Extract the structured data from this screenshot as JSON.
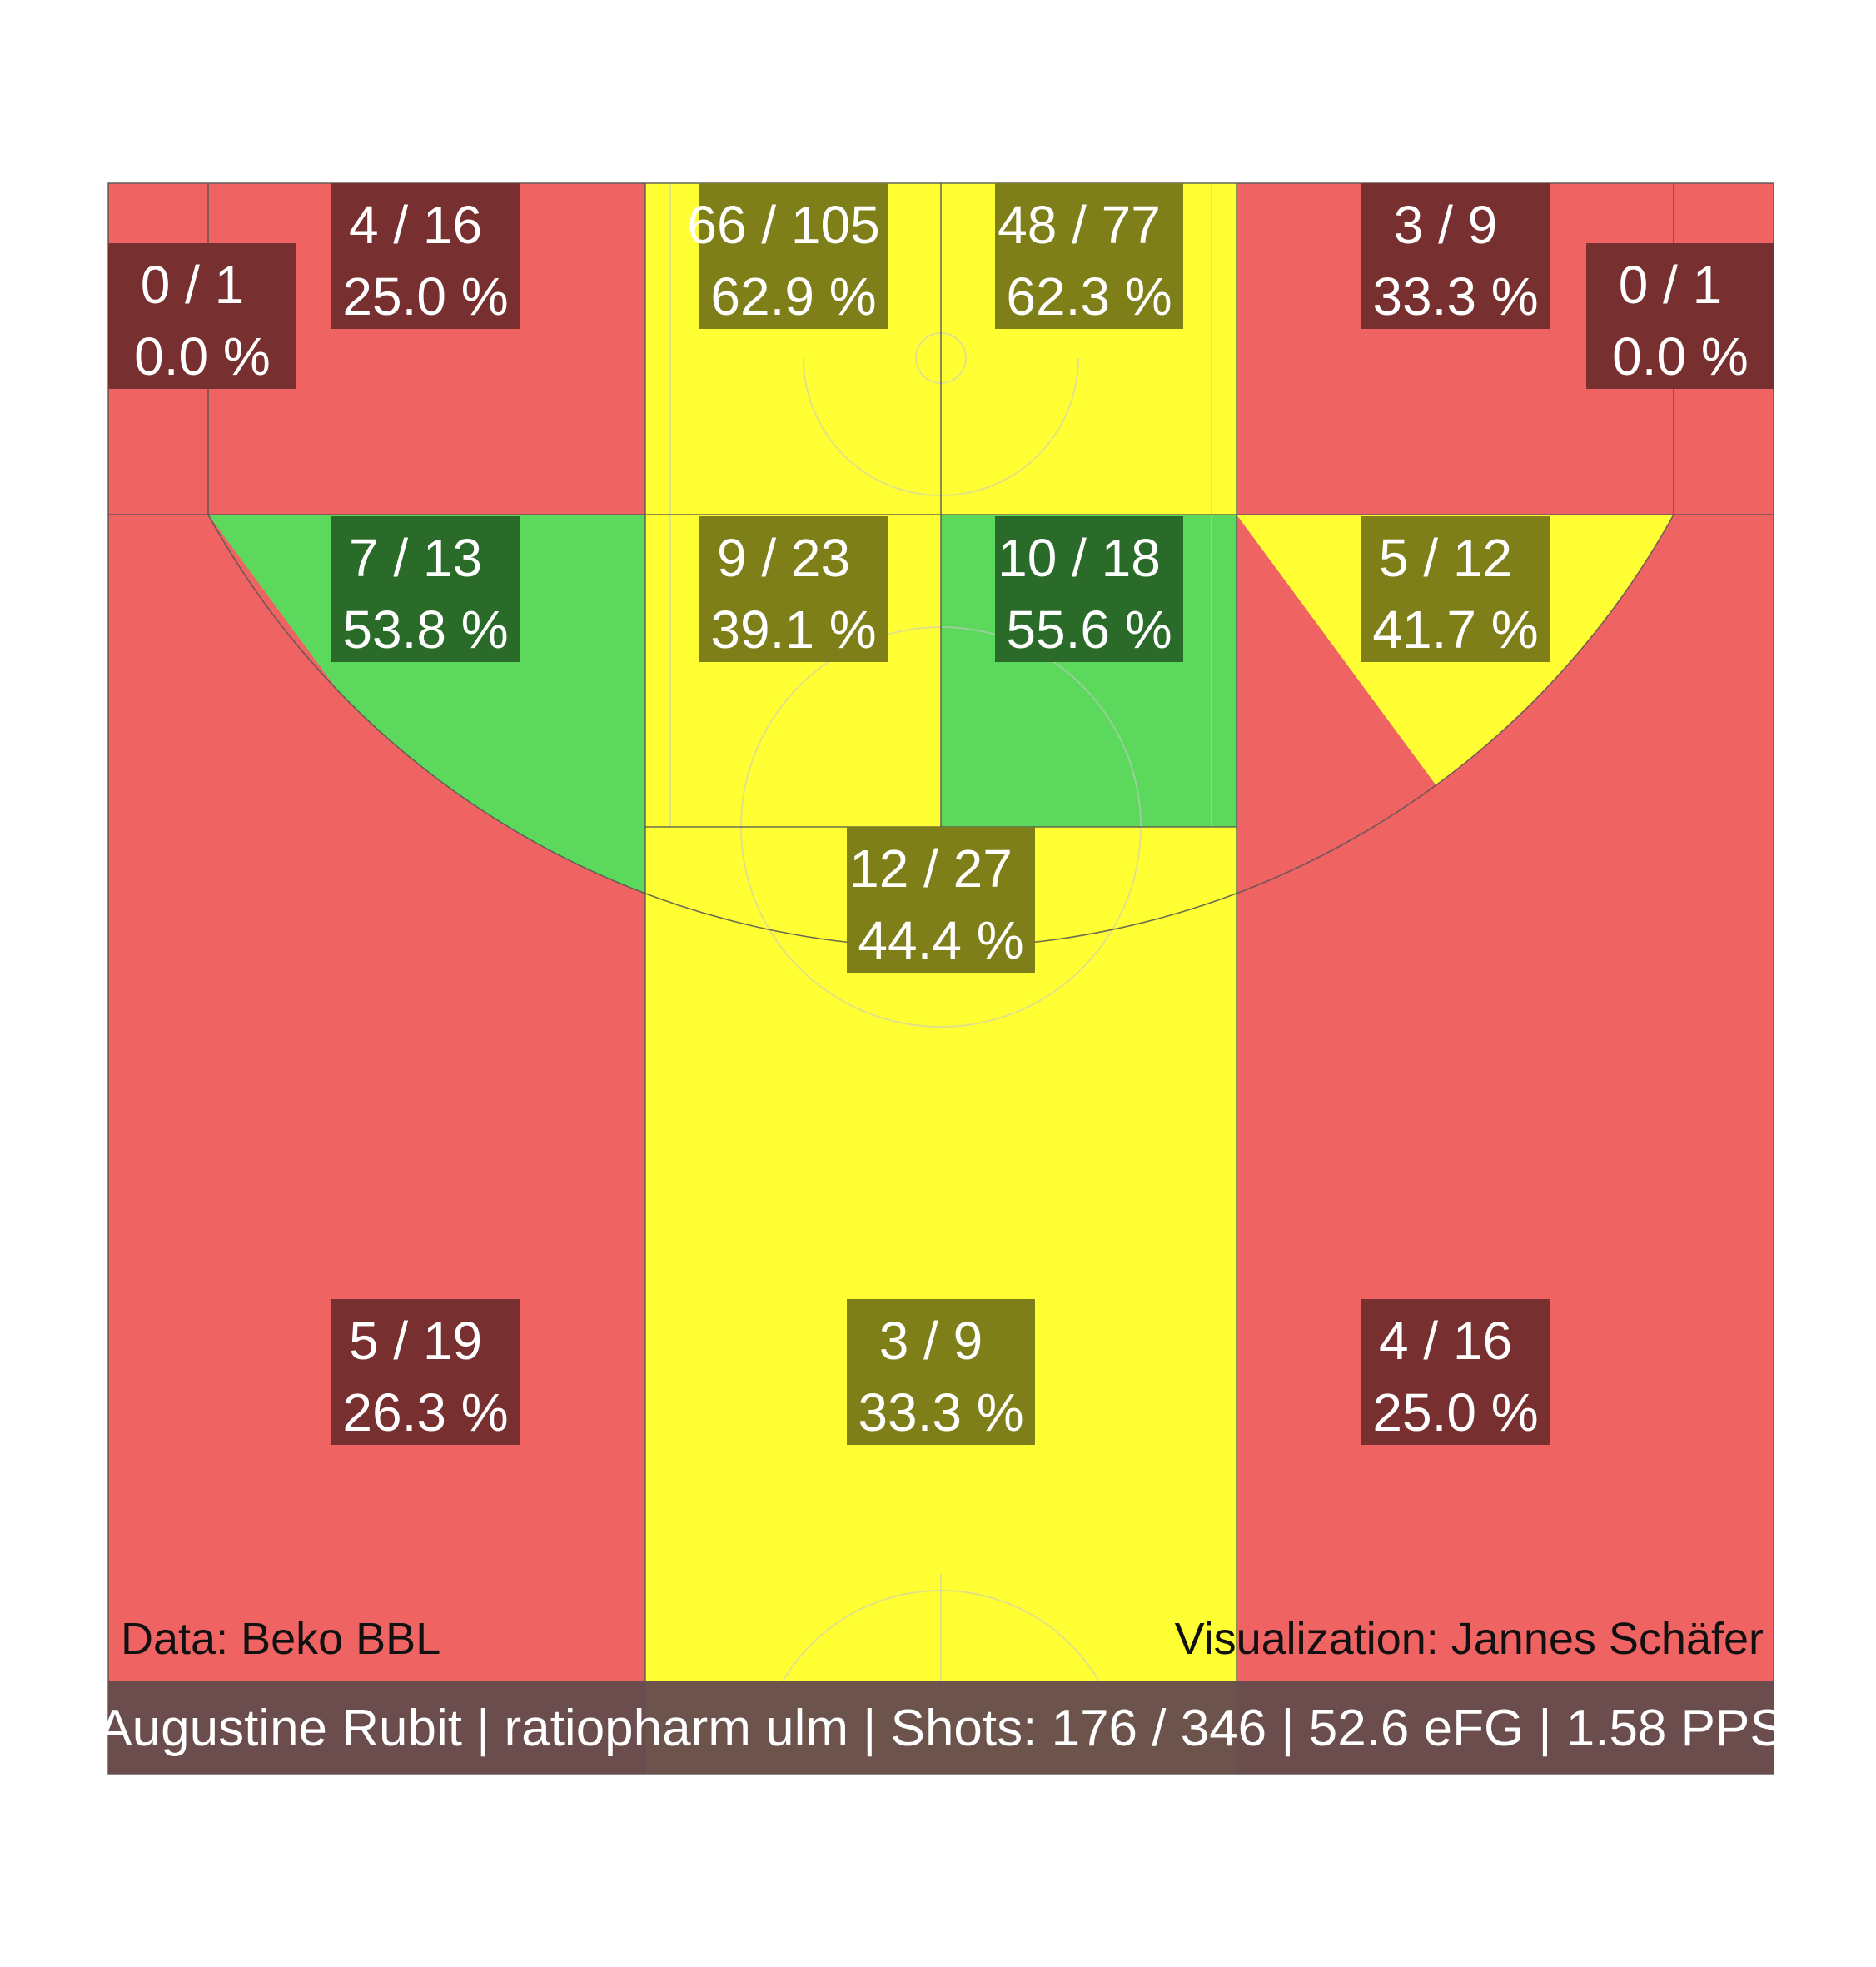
{
  "chart_data": {
    "type": "heatmap",
    "zones": [
      {
        "id": "left-corner-three",
        "made": 0,
        "attempts": 1,
        "pct": "0.0 %",
        "color": "red"
      },
      {
        "id": "left-baseline-long-two",
        "made": 4,
        "attempts": 16,
        "pct": "25.0 %",
        "color": "red"
      },
      {
        "id": "paint-left",
        "made": 66,
        "attempts": 105,
        "pct": "62.9 %",
        "color": "yellow"
      },
      {
        "id": "paint-right",
        "made": 48,
        "attempts": 77,
        "pct": "62.3 %",
        "color": "yellow"
      },
      {
        "id": "right-baseline-long-two",
        "made": 3,
        "attempts": 9,
        "pct": "33.3 %",
        "color": "red"
      },
      {
        "id": "right-corner-three",
        "made": 0,
        "attempts": 1,
        "pct": "0.0 %",
        "color": "red"
      },
      {
        "id": "left-wing-mid-range",
        "made": 7,
        "attempts": 13,
        "pct": "53.8 %",
        "color": "green"
      },
      {
        "id": "left-elbow",
        "made": 9,
        "attempts": 23,
        "pct": "39.1 %",
        "color": "yellow"
      },
      {
        "id": "right-elbow",
        "made": 10,
        "attempts": 18,
        "pct": "55.6 %",
        "color": "green"
      },
      {
        "id": "right-wing-mid-range",
        "made": 5,
        "attempts": 12,
        "pct": "41.7 %",
        "color": "yellow"
      },
      {
        "id": "top-key-mid-range",
        "made": 12,
        "attempts": 27,
        "pct": "44.4 %",
        "color": "yellow"
      },
      {
        "id": "left-wing-three",
        "made": 5,
        "attempts": 19,
        "pct": "26.3 %",
        "color": "red"
      },
      {
        "id": "top-three",
        "made": 3,
        "attempts": 9,
        "pct": "33.3 %",
        "color": "yellow"
      },
      {
        "id": "right-wing-three",
        "made": 4,
        "attempts": 16,
        "pct": "25.0 %",
        "color": "red"
      }
    ],
    "colors": {
      "red": "#f06363",
      "yellow": "#ffff33",
      "green": "#5cd95c",
      "box_red": "#782f2f",
      "box_yellow": "#7f7f1a",
      "box_green": "#2a6b2a",
      "footer": "#664c4c"
    }
  },
  "credits": {
    "data": "Data: Beko BBL",
    "visualization": "Visualization: Jannes Schäfer"
  },
  "footer": {
    "text": "Augustine Rubit | ratiopharm ulm | Shots: 176 / 346 | 52.6 eFG | 1.58 PPS"
  }
}
